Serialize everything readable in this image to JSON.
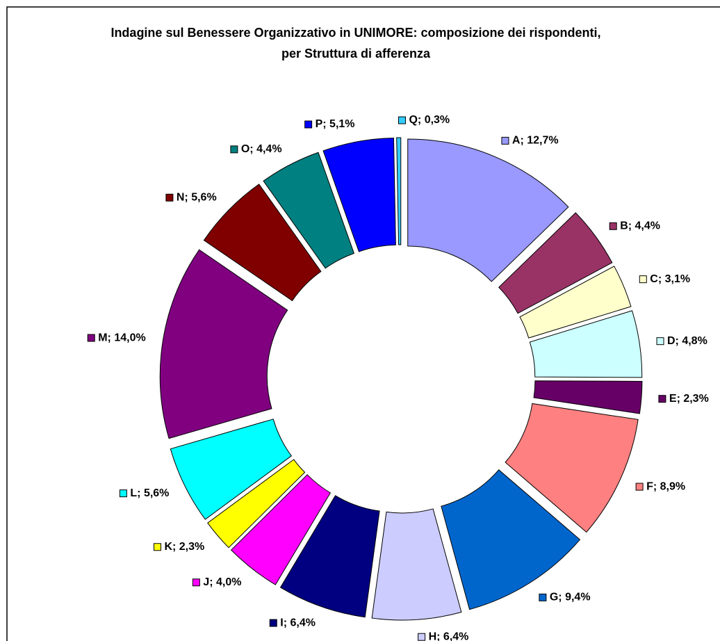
{
  "chart_data": {
    "type": "donut",
    "title": [
      "Indagine sul Benessere Organizzativo in UNIMORE: composizione dei rispondenti,",
      "per Struttura di afferenza"
    ],
    "series": [
      {
        "values": [
          12.7,
          4.4,
          3.1,
          4.8,
          2.3,
          8.9,
          9.4,
          6.4,
          6.4,
          4.0,
          2.3,
          5.6,
          14.0,
          5.6,
          4.4,
          5.1,
          0.3
        ],
        "value_labels": [
          "A; 12,7%",
          "B; 4,4%",
          "C; 3,1%",
          "D; 4,8%",
          "E; 2,3%",
          "F; 8,9%",
          "G; 9,4%",
          "H; 6,4%",
          "I; 6,4%",
          "J; 4,0%",
          "K; 2,3%",
          "L; 5,6%",
          "M; 14,0%",
          "N; 5,6%",
          "O; 4,4%",
          "P; 5,1%",
          "Q; 0,3%"
        ],
        "colors": [
          "#9999ff",
          "#993366",
          "#ffffcc",
          "#ccffff",
          "#660066",
          "#ff8080",
          "#0066cc",
          "#ccccff",
          "#000080",
          "#ff00ff",
          "#ffff00",
          "#00ffff",
          "#800080",
          "#800000",
          "#008080",
          "#0000ff",
          "#33ccff"
        ]
      }
    ]
  }
}
